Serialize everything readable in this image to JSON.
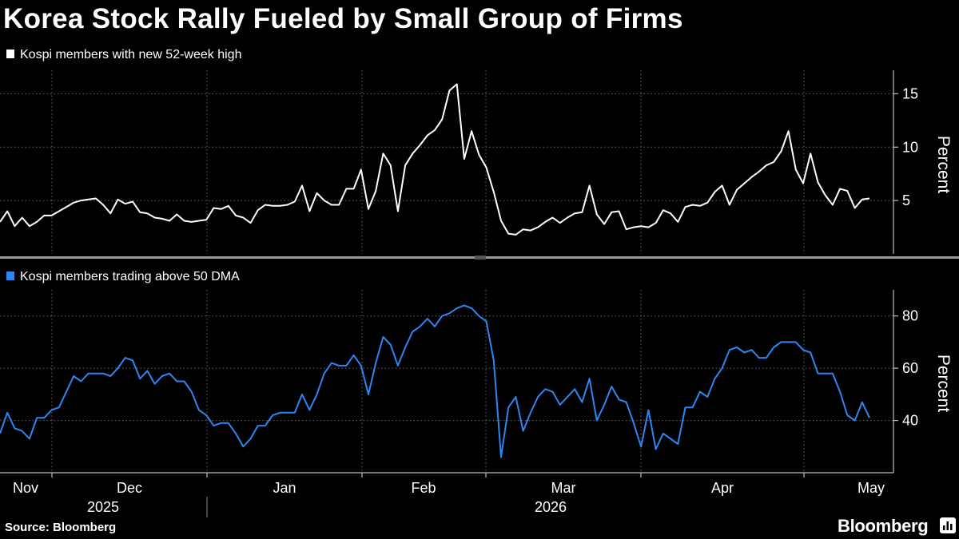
{
  "title": "Korea Stock Rally Fueled by Small Group of Firms",
  "source": "Source: Bloomberg",
  "brand": "Bloomberg",
  "colors": {
    "background": "#000000",
    "series_top": "#ffffff",
    "series_bottom": "#2e86f0",
    "grid": "#6a6a6a",
    "axis": "#bdbdbd"
  },
  "x_axis": {
    "months": [
      "Nov",
      "Dec",
      "Jan",
      "Feb",
      "Mar",
      "Apr",
      "May"
    ],
    "years": [
      "2025",
      "2026"
    ]
  },
  "chart_data": [
    {
      "type": "line",
      "legend": "Kospi members with new 52-week high",
      "ylabel": "Percent",
      "yticks": [
        5,
        10,
        15
      ],
      "ylim": [
        0,
        17.2
      ],
      "grid": true,
      "series": [
        {
          "name": "Kospi members with new 52-week high",
          "color": "#ffffff",
          "values": [
            3.0,
            4.0,
            2.6,
            3.4,
            2.6,
            3.0,
            3.6,
            3.6,
            4.0,
            4.4,
            4.8,
            5.0,
            5.1,
            5.2,
            4.6,
            3.8,
            5.1,
            4.7,
            4.9,
            3.9,
            3.8,
            3.4,
            3.3,
            3.1,
            3.7,
            3.1,
            3.0,
            3.1,
            3.2,
            4.3,
            4.2,
            4.5,
            3.6,
            3.4,
            2.9,
            4.1,
            4.6,
            4.5,
            4.5,
            4.6,
            4.9,
            6.4,
            4.0,
            5.7,
            5.0,
            4.6,
            4.6,
            6.1,
            6.1,
            7.9,
            4.2,
            5.9,
            9.4,
            8.3,
            4.0,
            8.3,
            9.4,
            10.2,
            11.1,
            11.6,
            12.6,
            15.3,
            15.9,
            8.9,
            11.5,
            9.3,
            8.1,
            5.8,
            3.1,
            1.9,
            1.8,
            2.3,
            2.2,
            2.5,
            3.0,
            3.4,
            2.9,
            3.4,
            3.8,
            3.9,
            6.4,
            3.7,
            2.8,
            3.9,
            4.0,
            2.3,
            2.5,
            2.6,
            2.5,
            2.9,
            4.1,
            3.8,
            3.0,
            4.4,
            4.6,
            4.5,
            4.8,
            5.8,
            6.4,
            4.6,
            6.0,
            6.6,
            7.2,
            7.7,
            8.3,
            8.6,
            9.6,
            11.5,
            7.9,
            6.6,
            9.4,
            6.7,
            5.5,
            4.6,
            6.1,
            5.9,
            4.3,
            5.1,
            5.2
          ]
        }
      ]
    },
    {
      "type": "line",
      "legend": "Kospi members trading above 50 DMA",
      "ylabel": "Percent",
      "yticks": [
        40,
        60,
        80
      ],
      "ylim": [
        20,
        90
      ],
      "grid": true,
      "series": [
        {
          "name": "Kospi members trading above 50 DMA",
          "color": "#2e86f0",
          "values": [
            35,
            43,
            37,
            36,
            33,
            41,
            41,
            44,
            45,
            51,
            57,
            55,
            58,
            58,
            58,
            57,
            60,
            64,
            63,
            56,
            59,
            54,
            57,
            58,
            55,
            55,
            51,
            44,
            42,
            38,
            39,
            39,
            35,
            30,
            33,
            38,
            38,
            42,
            43,
            43,
            43,
            50,
            44,
            50,
            58,
            62,
            61,
            61,
            65,
            61,
            50,
            62,
            72,
            69,
            61,
            68,
            74,
            76,
            79,
            76,
            80,
            81,
            83,
            84,
            83,
            80,
            78,
            63,
            26,
            45,
            49,
            36,
            43,
            49,
            52,
            51,
            46,
            49,
            52,
            47,
            56,
            40,
            46,
            53,
            48,
            47,
            39,
            30,
            44,
            29,
            35,
            33,
            31,
            45,
            45,
            51,
            49,
            56,
            60,
            67,
            68,
            66,
            67,
            64,
            64,
            68,
            70,
            70,
            70,
            67,
            66,
            58,
            58,
            58,
            51,
            42,
            40,
            47,
            41
          ]
        }
      ]
    }
  ]
}
